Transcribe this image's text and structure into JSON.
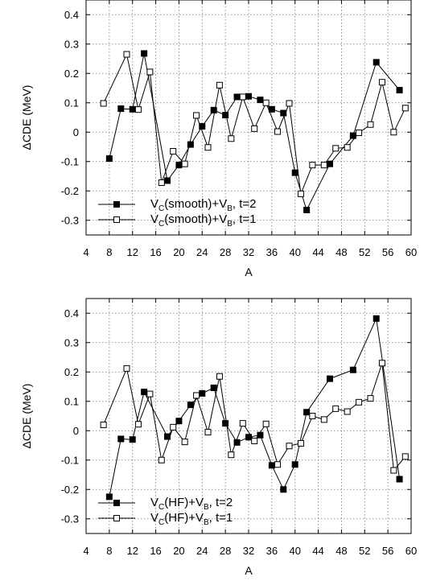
{
  "chart_data": [
    {
      "type": "line",
      "xlabel": "A",
      "ylabel": "ΔCDE (MeV)",
      "xlim": [
        4,
        60
      ],
      "ylim": [
        -0.35,
        0.45
      ],
      "xticks": [
        4,
        8,
        12,
        16,
        20,
        24,
        28,
        32,
        36,
        40,
        44,
        48,
        52,
        56,
        60
      ],
      "yticks": [
        -0.3,
        -0.2,
        -0.1,
        0,
        0.1,
        0.2,
        0.3,
        0.4
      ],
      "ytick_labels": [
        "-0.3",
        "-0.2",
        "-0.1",
        "0",
        "0.1",
        "0.2",
        "0.3",
        "0.4"
      ],
      "grid": true,
      "legend_position": "bottom-left",
      "series": [
        {
          "name": "V_C(smooth)+V_B, t=2",
          "legend": {
            "pre": "V",
            "sub1": "C",
            "mid": "(smooth)+V",
            "sub2": "B",
            "post": ", t=2"
          },
          "marker": "filled-square",
          "x": [
            8,
            10,
            12,
            14,
            18,
            20,
            22,
            24,
            26,
            28,
            30,
            32,
            34,
            36,
            38,
            40,
            42,
            46,
            50,
            54,
            58
          ],
          "y": [
            -0.09,
            0.08,
            0.078,
            0.268,
            -0.165,
            -0.112,
            -0.042,
            0.02,
            0.075,
            0.058,
            0.12,
            0.122,
            0.11,
            0.078,
            0.065,
            -0.138,
            -0.265,
            -0.108,
            -0.012,
            0.238,
            0.143
          ]
        },
        {
          "name": "V_C(smooth)+V_B, t=1",
          "legend": {
            "pre": "V",
            "sub1": "C",
            "mid": "(smooth)+V",
            "sub2": "B",
            "post": ", t=1"
          },
          "marker": "open-square",
          "x": [
            7,
            11,
            13,
            15,
            17,
            19,
            21,
            23,
            25,
            27,
            29,
            31,
            33,
            35,
            37,
            39,
            41,
            43,
            45,
            47,
            49,
            51,
            53,
            55,
            57,
            59
          ],
          "y": [
            0.098,
            0.265,
            0.077,
            0.205,
            -0.172,
            -0.065,
            -0.108,
            0.057,
            -0.052,
            0.16,
            -0.022,
            0.12,
            0.012,
            0.1,
            0.002,
            0.098,
            -0.21,
            -0.112,
            -0.112,
            -0.055,
            -0.052,
            -0.002,
            0.026,
            0.17,
            0.0,
            0.082
          ]
        }
      ]
    },
    {
      "type": "line",
      "xlabel": "A",
      "ylabel": "ΔCDE (MeV)",
      "xlim": [
        4,
        60
      ],
      "ylim": [
        -0.35,
        0.45
      ],
      "xticks": [
        4,
        8,
        12,
        16,
        20,
        24,
        28,
        32,
        36,
        40,
        44,
        48,
        52,
        56,
        60
      ],
      "yticks": [
        -0.3,
        -0.2,
        -0.1,
        0,
        0.1,
        0.2,
        0.3,
        0.4
      ],
      "ytick_labels": [
        "-0.3",
        "-0.2",
        "-0.1",
        "0",
        "0.1",
        "0.2",
        "0.3",
        "0.4"
      ],
      "grid": true,
      "legend_position": "bottom-left",
      "series": [
        {
          "name": "V_C(HF)+V_B, t=2",
          "legend": {
            "pre": "V",
            "sub1": "C",
            "mid": "(HF)+V",
            "sub2": "B",
            "post": ", t=2"
          },
          "marker": "filled-square",
          "x": [
            8,
            10,
            12,
            14,
            18,
            20,
            22,
            24,
            26,
            28,
            30,
            32,
            34,
            36,
            38,
            40,
            42,
            46,
            50,
            54,
            58
          ],
          "y": [
            -0.225,
            -0.028,
            -0.03,
            0.132,
            -0.02,
            0.033,
            0.088,
            0.127,
            0.146,
            0.025,
            -0.04,
            -0.022,
            -0.015,
            -0.118,
            -0.2,
            -0.115,
            0.063,
            0.177,
            0.207,
            0.382,
            -0.165
          ]
        },
        {
          "name": "V_C(HF)+V_B, t=1",
          "legend": {
            "pre": "V",
            "sub1": "C",
            "mid": "(HF)+V",
            "sub2": "B",
            "post": ", t=1"
          },
          "marker": "open-square",
          "x": [
            7,
            11,
            13,
            15,
            17,
            19,
            21,
            23,
            25,
            27,
            29,
            31,
            33,
            35,
            37,
            39,
            41,
            43,
            45,
            47,
            49,
            51,
            53,
            55,
            57,
            59
          ],
          "y": [
            0.02,
            0.212,
            0.022,
            0.125,
            -0.1,
            0.012,
            -0.038,
            0.12,
            -0.005,
            0.185,
            -0.082,
            0.025,
            -0.035,
            0.023,
            -0.115,
            -0.052,
            -0.043,
            0.05,
            0.038,
            0.075,
            0.065,
            0.097,
            0.11,
            0.23,
            -0.135,
            -0.088
          ]
        }
      ]
    }
  ]
}
